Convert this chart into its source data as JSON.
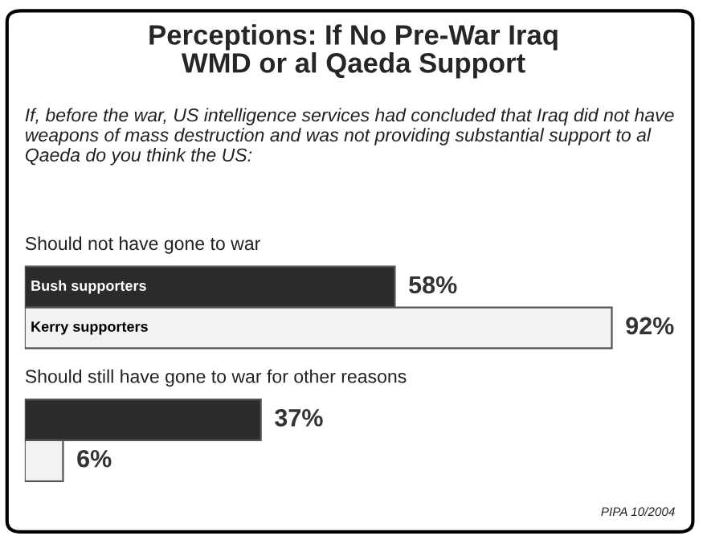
{
  "chart_data": {
    "type": "bar",
    "orientation": "horizontal",
    "title": "Perceptions: If No Pre-War Iraq\nWMD or al Qaeda Support",
    "subtitle": "If, before the war, US intelligence services had concluded that Iraq did not have weapons of mass destruction and was not providing substantial support to al Qaeda do you think the US:",
    "categories": [
      "Should not have gone to war",
      "Should still have gone to war for other reasons"
    ],
    "series": [
      {
        "name": "Bush supporters",
        "color": "#2b2b2b",
        "values": [
          58,
          37
        ],
        "value_labels": [
          "58%",
          "37%"
        ]
      },
      {
        "name": "Kerry supporters",
        "color": "#f2f2f2",
        "values": [
          92,
          6
        ],
        "value_labels": [
          "92%",
          "6%"
        ]
      }
    ],
    "legend": false,
    "annotations": [
      "PIPA 10/2004"
    ]
  }
}
